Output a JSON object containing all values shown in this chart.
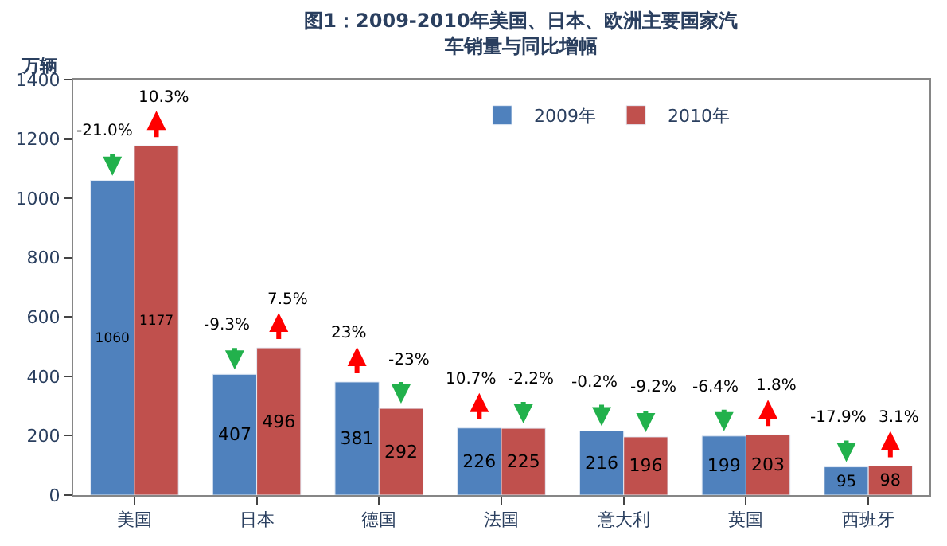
{
  "chart_data": {
    "type": "bar",
    "title": "图1：2009-2010年美国、日本、欧洲主要国家汽车销量与同比增幅",
    "ylabel": "万辆",
    "categories": [
      "美国",
      "日本",
      "德国",
      "法国",
      "意大利",
      "英国",
      "西班牙"
    ],
    "series": [
      {
        "name": "2009年",
        "color": "#4f81bd",
        "values": [
          1060,
          407,
          381,
          226,
          216,
          199,
          95
        ]
      },
      {
        "name": "2010年",
        "color": "#c0504d",
        "values": [
          1177,
          496,
          292,
          225,
          196,
          203,
          98
        ]
      }
    ],
    "data_labels": true,
    "ylim": [
      0,
      1400
    ],
    "yticks": [
      0,
      200,
      400,
      600,
      800,
      1000,
      1200,
      1400
    ],
    "legend": "top",
    "annotations": [
      {
        "text": "-21.0%",
        "x": "美国",
        "y": 1060
      },
      {
        "text": "10.3%",
        "x": "美国",
        "y": 1177
      },
      {
        "text": "-9.3%",
        "x": "日本",
        "y": 407
      },
      {
        "text": "7.5%",
        "x": "日本",
        "y": 496
      },
      {
        "text": "23%",
        "x": "德国",
        "y": 381
      },
      {
        "text": "-23%",
        "x": "德国",
        "y": 292
      },
      {
        "text": "10.7%",
        "x": "法国",
        "y": 226
      },
      {
        "text": "-2.2%",
        "x": "法国",
        "y": 225
      },
      {
        "text": "-0.2%",
        "x": "意大利",
        "y": 216
      },
      {
        "text": "-9.2%",
        "x": "意大利",
        "y": 196
      },
      {
        "text": "-6.4%",
        "x": "英国",
        "y": 199
      },
      {
        "text": "1.8%",
        "x": "英国",
        "y": 203
      },
      {
        "text": "-17.9%",
        "x": "西班牙",
        "y": 95
      },
      {
        "text": "3.1%",
        "x": "西班牙",
        "y": 98
      }
    ]
  }
}
